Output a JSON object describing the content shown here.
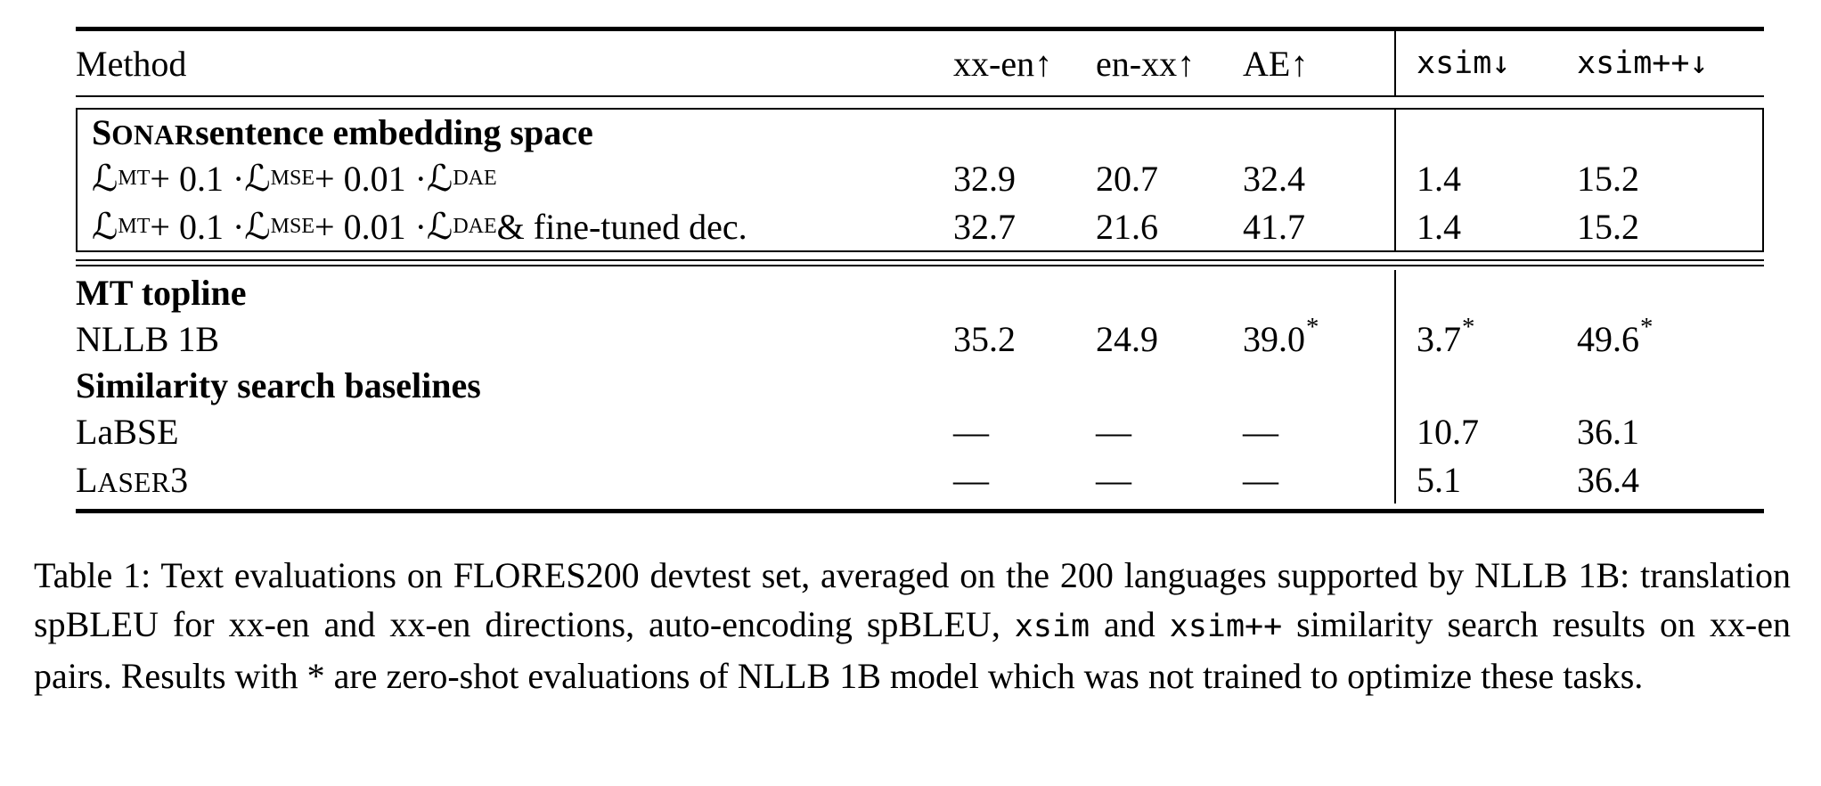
{
  "colors": {
    "text": "#000000",
    "background": "#ffffff",
    "rule": "#000000"
  },
  "table": {
    "columns": [
      {
        "id": "method",
        "label": "Method",
        "font": "serif",
        "divided": false
      },
      {
        "id": "xx-en",
        "label": "xx-en↑",
        "font": "serif",
        "divided": false
      },
      {
        "id": "en-xx",
        "label": "en-xx↑",
        "font": "serif",
        "divided": false
      },
      {
        "id": "ae",
        "label": "AE↑",
        "font": "serif",
        "divided": false
      },
      {
        "id": "xsim",
        "label": "xsim↓",
        "font": "mono",
        "divided": true
      },
      {
        "id": "xsim-pp",
        "label": "xsim++↓",
        "font": "mono",
        "divided": false
      }
    ],
    "sections": [
      {
        "name": "sonar-sentence-embedding-space",
        "boxed": true,
        "rows": [
          {
            "name": "section-title-sonar",
            "method": [
              {
                "t": "SONAR",
                "k": "scb"
              },
              {
                "t": " sentence embedding space",
                "k": "b"
              }
            ],
            "values": [
              "",
              "",
              "",
              "",
              ""
            ]
          },
          {
            "name": "row-loss-mt-mse-dae",
            "method": [
              {
                "t": "ℒ",
                "k": "scr"
              },
              {
                "t": "MT",
                "k": "sub"
              },
              {
                "t": " + 0.1 · "
              },
              {
                "t": "ℒ",
                "k": "scr"
              },
              {
                "t": "MSE",
                "k": "sub"
              },
              {
                "t": " + 0.01 · "
              },
              {
                "t": "ℒ",
                "k": "scr"
              },
              {
                "t": "DAE",
                "k": "sub"
              }
            ],
            "values": [
              "32.9",
              "20.7",
              "32.4",
              "1.4",
              "15.2"
            ]
          },
          {
            "name": "row-loss-mt-mse-dae-finetuned",
            "method": [
              {
                "t": "ℒ",
                "k": "scr"
              },
              {
                "t": "MT",
                "k": "sub"
              },
              {
                "t": " + 0.1 · "
              },
              {
                "t": "ℒ",
                "k": "scr"
              },
              {
                "t": "MSE",
                "k": "sub"
              },
              {
                "t": " + 0.01 · "
              },
              {
                "t": "ℒ",
                "k": "scr"
              },
              {
                "t": "DAE",
                "k": "sub"
              },
              {
                "t": " & fine-tuned dec."
              }
            ],
            "values": [
              "32.7",
              "21.6",
              "41.7",
              "1.4",
              "15.2"
            ]
          }
        ]
      },
      {
        "name": "toplines-and-baselines",
        "boxed": false,
        "rows": [
          {
            "name": "section-title-mt-topline",
            "method": [
              {
                "t": "MT topline",
                "k": "b"
              }
            ],
            "values": [
              "",
              "",
              "",
              "",
              ""
            ]
          },
          {
            "name": "row-nllb-1b",
            "method": [
              {
                "t": "NLLB 1B"
              }
            ],
            "values": [
              "35.2",
              "24.9",
              "39.0*",
              "3.7*",
              "49.6*"
            ]
          },
          {
            "name": "section-title-similarity-search-baselines",
            "method": [
              {
                "t": "Similarity search baselines",
                "k": "b"
              }
            ],
            "values": [
              "",
              "",
              "",
              "",
              ""
            ]
          },
          {
            "name": "row-labse",
            "method": [
              {
                "t": "LaBSE"
              }
            ],
            "values": [
              "—",
              "—",
              "—",
              "10.7",
              "36.1"
            ]
          },
          {
            "name": "row-laser3",
            "method": [
              {
                "t": "LASER",
                "k": "sc"
              },
              {
                "t": "3"
              }
            ],
            "values": [
              "—",
              "—",
              "—",
              "5.1",
              "36.4"
            ]
          }
        ]
      }
    ]
  },
  "caption": {
    "label": "Table 1:",
    "segments": [
      {
        "t": "Table 1: Text evaluations on FLORES200 devtest set, averaged on the 200 languages supported by NLLB 1B: translation spBLEU for xx-en and xx-en directions, auto-encoding spBLEU, "
      },
      {
        "t": "xsim",
        "k": "mono"
      },
      {
        "t": " and "
      },
      {
        "t": "xsim++",
        "k": "mono"
      },
      {
        "t": " similarity search results on xx-en pairs.  Results with * are zero-shot evaluations of NLLB 1B model which was not trained to optimize these tasks."
      }
    ]
  }
}
